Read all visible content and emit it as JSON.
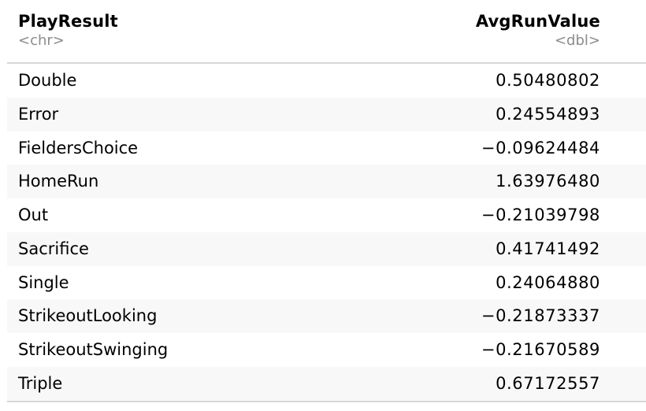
{
  "table": {
    "columns": [
      {
        "name": "PlayResult",
        "type": "<chr>"
      },
      {
        "name": "AvgRunValue",
        "type": "<dbl>"
      }
    ],
    "rows": [
      {
        "play_result": "Double",
        "avg_run_value": "0.50480802"
      },
      {
        "play_result": "Error",
        "avg_run_value": "0.24554893"
      },
      {
        "play_result": "FieldersChoice",
        "avg_run_value": "−0.09624484"
      },
      {
        "play_result": "HomeRun",
        "avg_run_value": "1.63976480"
      },
      {
        "play_result": "Out",
        "avg_run_value": "−0.21039798"
      },
      {
        "play_result": "Sacrifice",
        "avg_run_value": "0.41741492"
      },
      {
        "play_result": "Single",
        "avg_run_value": "0.24064880"
      },
      {
        "play_result": "StrikeoutLooking",
        "avg_run_value": "−0.21873337"
      },
      {
        "play_result": "StrikeoutSwinging",
        "avg_run_value": "−0.21670589"
      },
      {
        "play_result": "Triple",
        "avg_run_value": "0.67172557"
      }
    ]
  }
}
